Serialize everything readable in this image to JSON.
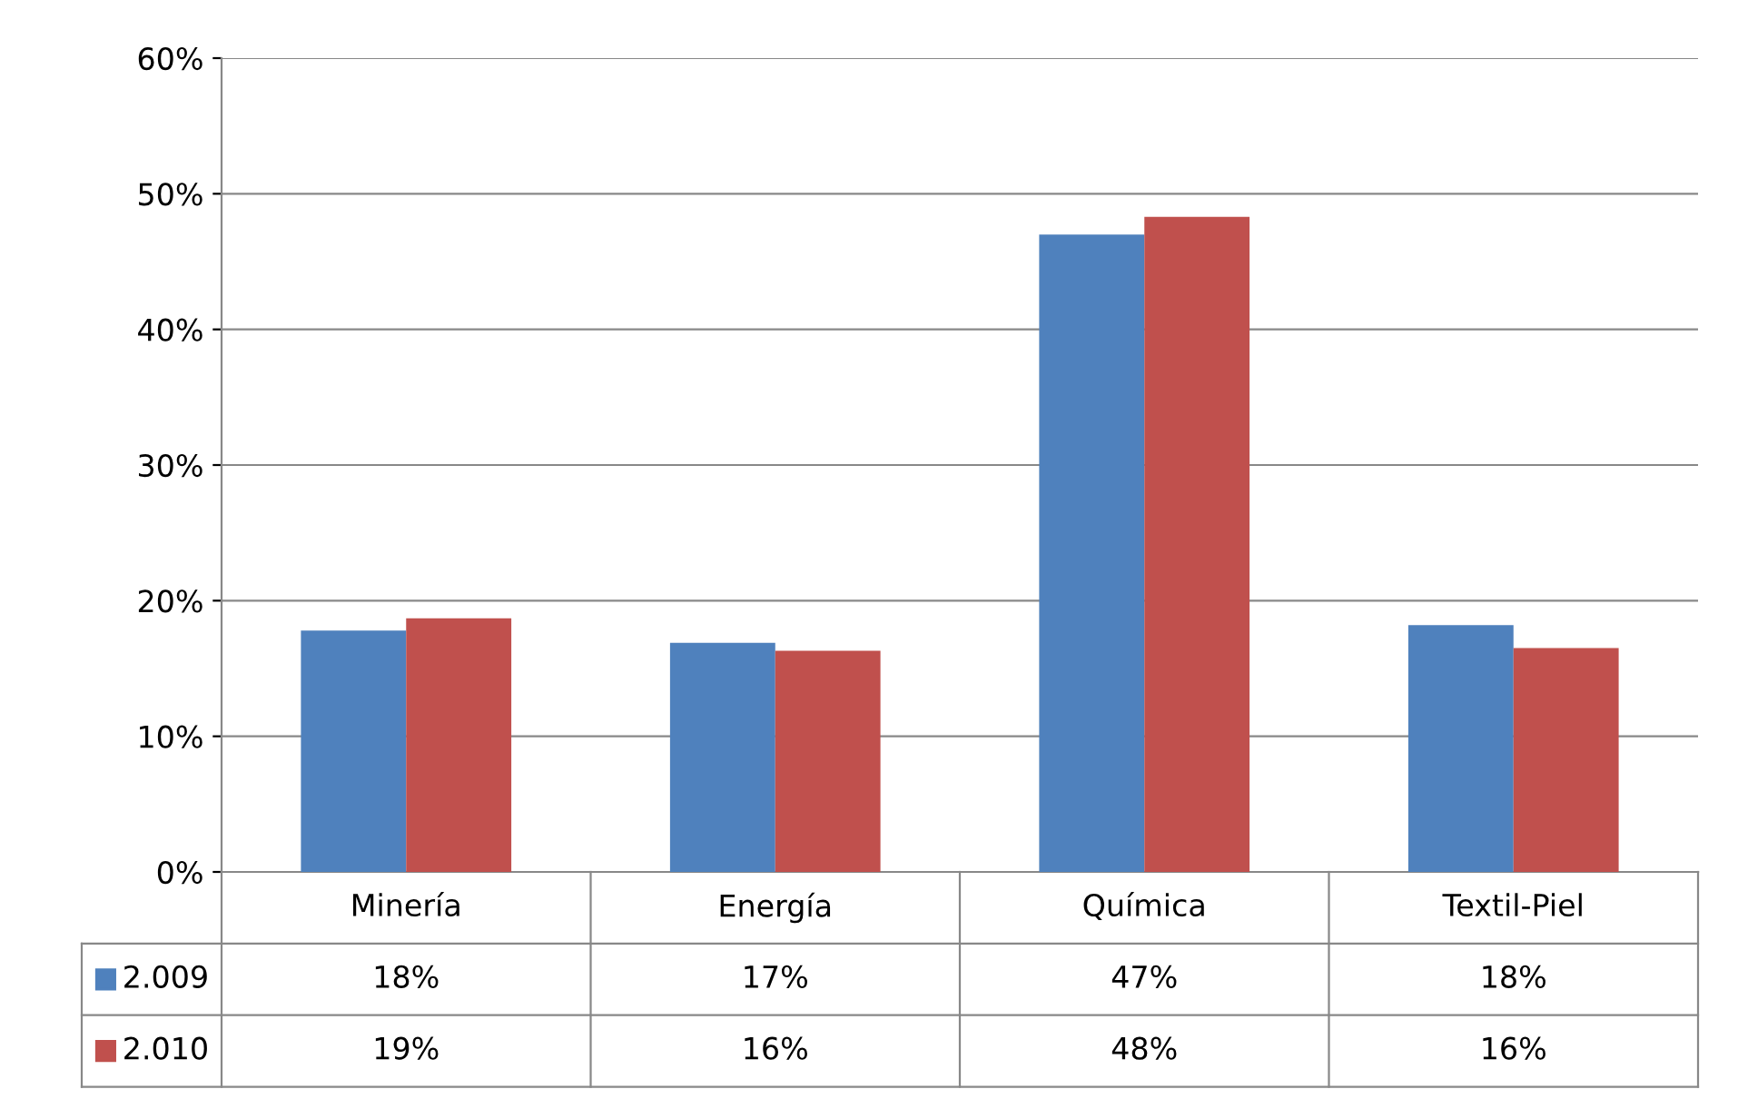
{
  "chart_data": {
    "type": "bar",
    "categories": [
      "Minería",
      "Energía",
      "Química",
      "Textil-Piel"
    ],
    "series": [
      {
        "name": "2.009",
        "color": "#4f81bd",
        "values": [
          17.8,
          16.9,
          47.0,
          18.2
        ],
        "value_labels": [
          "18%",
          "17%",
          "47%",
          "18%"
        ]
      },
      {
        "name": "2.010",
        "color": "#c0504d",
        "values": [
          18.7,
          16.3,
          48.3,
          16.5
        ],
        "value_labels": [
          "19%",
          "16%",
          "48%",
          "16%"
        ]
      }
    ],
    "ylim": [
      0,
      60
    ],
    "yticks": [
      {
        "value": 0,
        "label": "0%"
      },
      {
        "value": 10,
        "label": "10%"
      },
      {
        "value": 20,
        "label": "20%"
      },
      {
        "value": 30,
        "label": "30%"
      },
      {
        "value": 40,
        "label": "40%"
      },
      {
        "value": 50,
        "label": "50%"
      },
      {
        "value": 60,
        "label": "60%"
      }
    ],
    "grid": "y",
    "legend": "bottom"
  }
}
